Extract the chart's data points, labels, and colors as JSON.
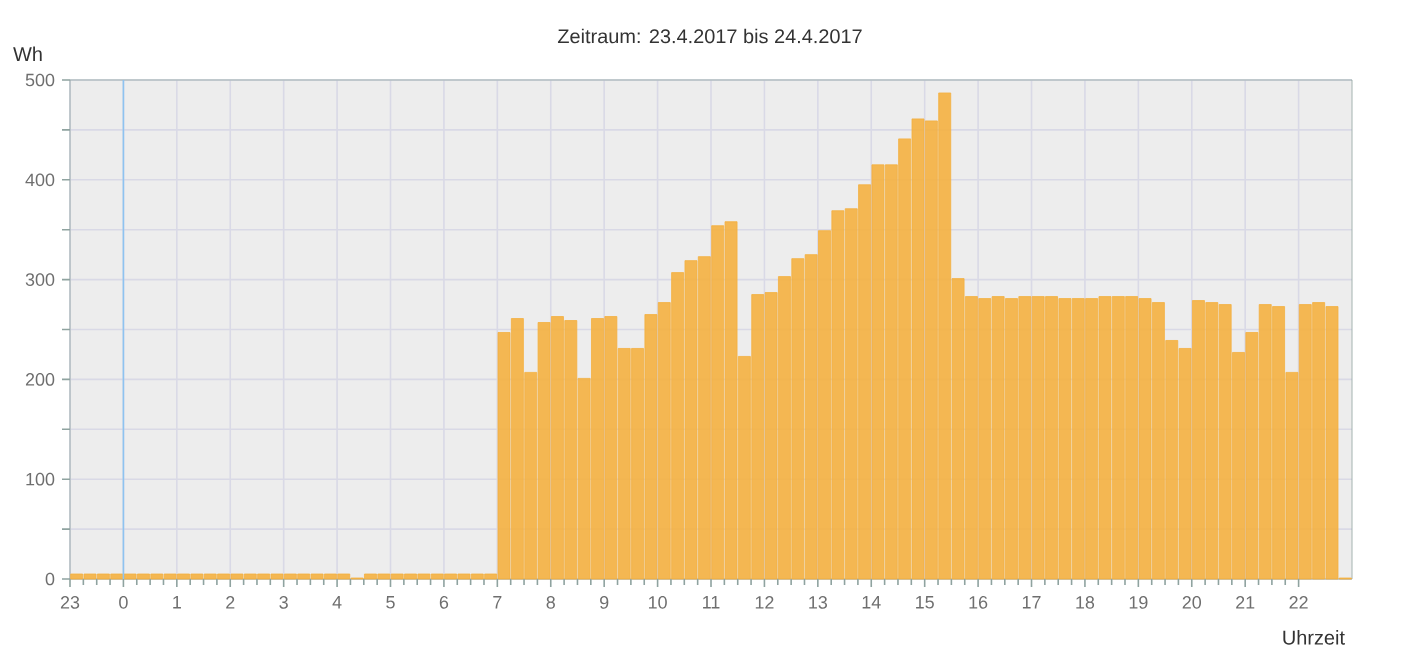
{
  "chart_data": {
    "type": "bar",
    "title": "Zeitraum: 23.4.2017 bis 24.4.2017",
    "xlabel": "Uhrzeit",
    "ylabel": "Wh",
    "x": [
      "2017-04-23T23:00",
      "2017-04-23T23:15",
      "2017-04-23T23:30",
      "2017-04-23T23:45",
      "2017-04-24T00:00",
      "2017-04-24T00:15",
      "2017-04-24T00:30",
      "2017-04-24T00:45",
      "2017-04-24T01:00",
      "2017-04-24T01:15",
      "2017-04-24T01:30",
      "2017-04-24T01:45",
      "2017-04-24T02:00",
      "2017-04-24T02:15",
      "2017-04-24T02:30",
      "2017-04-24T02:45",
      "2017-04-24T03:00",
      "2017-04-24T03:15",
      "2017-04-24T03:30",
      "2017-04-24T03:45",
      "2017-04-24T04:00",
      "2017-04-24T04:15",
      "2017-04-24T04:30",
      "2017-04-24T04:45",
      "2017-04-24T05:00",
      "2017-04-24T05:15",
      "2017-04-24T05:30",
      "2017-04-24T05:45",
      "2017-04-24T06:00",
      "2017-04-24T06:15",
      "2017-04-24T06:30",
      "2017-04-24T06:45",
      "2017-04-24T07:00",
      "2017-04-24T07:15",
      "2017-04-24T07:30",
      "2017-04-24T07:45",
      "2017-04-24T08:00",
      "2017-04-24T08:15",
      "2017-04-24T08:30",
      "2017-04-24T08:45",
      "2017-04-24T09:00",
      "2017-04-24T09:15",
      "2017-04-24T09:30",
      "2017-04-24T09:45",
      "2017-04-24T10:00",
      "2017-04-24T10:15",
      "2017-04-24T10:30",
      "2017-04-24T10:45",
      "2017-04-24T11:00",
      "2017-04-24T11:15",
      "2017-04-24T11:30",
      "2017-04-24T11:45",
      "2017-04-24T12:00",
      "2017-04-24T12:15",
      "2017-04-24T12:30",
      "2017-04-24T12:45",
      "2017-04-24T13:00",
      "2017-04-24T13:15",
      "2017-04-24T13:30",
      "2017-04-24T13:45",
      "2017-04-24T14:00",
      "2017-04-24T14:15",
      "2017-04-24T14:30",
      "2017-04-24T14:45",
      "2017-04-24T15:00",
      "2017-04-24T15:15",
      "2017-04-24T15:30",
      "2017-04-24T15:45",
      "2017-04-24T16:00",
      "2017-04-24T16:15",
      "2017-04-24T16:30",
      "2017-04-24T16:45",
      "2017-04-24T17:00",
      "2017-04-24T17:15",
      "2017-04-24T17:30",
      "2017-04-24T17:45",
      "2017-04-24T18:00",
      "2017-04-24T18:15",
      "2017-04-24T18:30",
      "2017-04-24T18:45",
      "2017-04-24T19:00",
      "2017-04-24T19:15",
      "2017-04-24T19:30",
      "2017-04-24T19:45",
      "2017-04-24T20:00",
      "2017-04-24T20:15",
      "2017-04-24T20:30",
      "2017-04-24T20:45",
      "2017-04-24T21:00",
      "2017-04-24T21:15",
      "2017-04-24T21:30",
      "2017-04-24T21:45",
      "2017-04-24T22:00",
      "2017-04-24T22:15",
      "2017-04-24T22:30",
      "2017-04-24T22:45"
    ],
    "values": [
      5,
      5,
      5,
      5,
      5,
      5,
      5,
      5,
      5,
      5,
      5,
      5,
      5,
      5,
      5,
      5,
      5,
      5,
      5,
      5,
      5,
      1,
      5,
      5,
      5,
      5,
      5,
      5,
      5,
      5,
      5,
      5,
      247,
      261,
      207,
      257,
      263,
      259,
      201,
      261,
      263,
      231,
      231,
      265,
      277,
      307,
      319,
      323,
      354,
      358,
      223,
      285,
      287,
      303,
      321,
      325,
      349,
      369,
      371,
      395,
      415,
      415,
      441,
      461,
      459,
      487,
      301,
      283,
      281,
      283,
      281,
      283,
      283,
      283,
      281,
      281,
      281,
      283,
      283,
      283,
      281,
      277,
      239,
      231,
      279,
      277,
      275,
      227,
      247,
      275,
      273,
      207,
      275,
      277,
      273,
      1
    ],
    "color": "#f4b040",
    "xlim": [
      "2017-04-23T23:00",
      "2017-04-24T23:00"
    ],
    "xticks": [
      {
        "value": "2017-04-23T23:00",
        "label": "23"
      },
      {
        "value": "2017-04-24T00:00",
        "label": "0"
      },
      {
        "value": "2017-04-24T01:00",
        "label": "1"
      },
      {
        "value": "2017-04-24T02:00",
        "label": "2"
      },
      {
        "value": "2017-04-24T03:00",
        "label": "3"
      },
      {
        "value": "2017-04-24T04:00",
        "label": "4"
      },
      {
        "value": "2017-04-24T05:00",
        "label": "5"
      },
      {
        "value": "2017-04-24T06:00",
        "label": "6"
      },
      {
        "value": "2017-04-24T07:00",
        "label": "7"
      },
      {
        "value": "2017-04-24T08:00",
        "label": "8"
      },
      {
        "value": "2017-04-24T09:00",
        "label": "9"
      },
      {
        "value": "2017-04-24T10:00",
        "label": "10"
      },
      {
        "value": "2017-04-24T11:00",
        "label": "11"
      },
      {
        "value": "2017-04-24T12:00",
        "label": "12"
      },
      {
        "value": "2017-04-24T13:00",
        "label": "13"
      },
      {
        "value": "2017-04-24T14:00",
        "label": "14"
      },
      {
        "value": "2017-04-24T15:00",
        "label": "15"
      },
      {
        "value": "2017-04-24T16:00",
        "label": "16"
      },
      {
        "value": "2017-04-24T17:00",
        "label": "17"
      },
      {
        "value": "2017-04-24T18:00",
        "label": "18"
      },
      {
        "value": "2017-04-24T19:00",
        "label": "19"
      },
      {
        "value": "2017-04-24T20:00",
        "label": "20"
      },
      {
        "value": "2017-04-24T21:00",
        "label": "21"
      },
      {
        "value": "2017-04-24T22:00",
        "label": "22"
      }
    ],
    "ylim": [
      0,
      500
    ],
    "yticks": [
      0,
      {
        "value": 50,
        "label": null
      },
      100,
      {
        "value": 150,
        "label": null
      },
      200,
      {
        "value": 250,
        "label": null
      },
      300,
      {
        "value": 350,
        "label": null
      },
      400,
      {
        "value": 450,
        "label": null
      },
      500
    ],
    "grid": true,
    "ref_lines": [
      {
        "axis": "x",
        "value": "2017-04-24T00:00",
        "color": "#8ec3f0"
      }
    ]
  }
}
